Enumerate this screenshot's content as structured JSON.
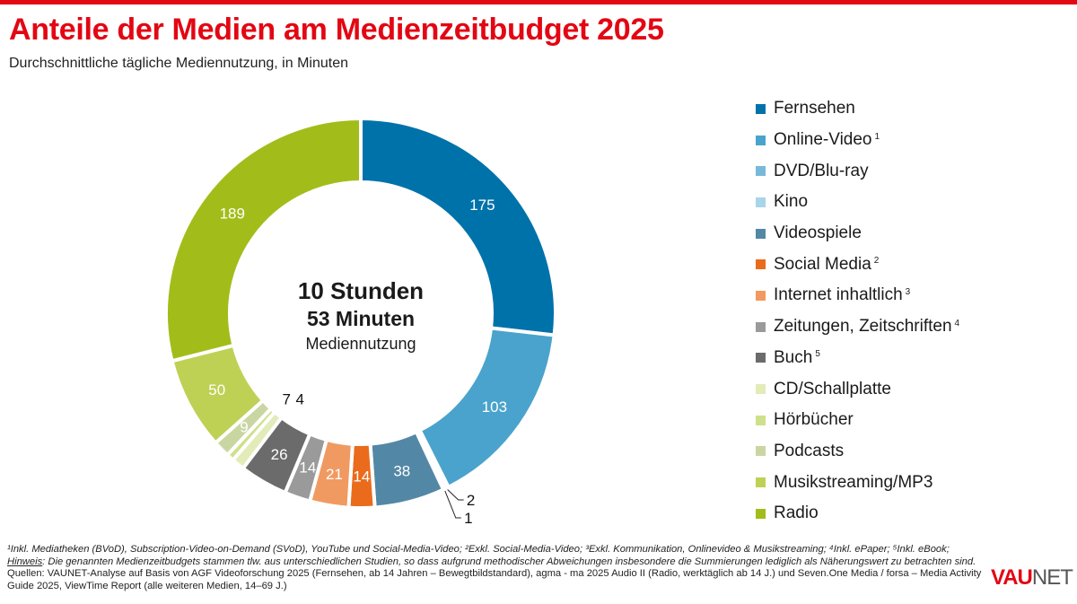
{
  "title": "Anteile der Medien am Medienzeitbudget 2025",
  "subtitle": "Durchschnittliche tägliche Mediennutzung, in Minuten",
  "center": {
    "line1": "10 Stunden",
    "line2": "53 Minuten",
    "line3": "Mediennutzung"
  },
  "chart_data": {
    "type": "pie",
    "variant": "donut",
    "title": "Anteile der Medien am Medienzeitbudget 2025",
    "unit": "Minuten",
    "legend_position": "right",
    "categories": [
      "Fernsehen",
      "Online-Video",
      "DVD/Blu-ray",
      "Kino",
      "Videospiele",
      "Social Media",
      "Internet inhaltlich",
      "Zeitungen, Zeitschriften",
      "Buch",
      "CD/Schallplatte",
      "Hörbücher",
      "Podcasts",
      "Musikstreaming/MP3",
      "Radio"
    ],
    "footnote_marks": [
      "",
      "1",
      "",
      "",
      "",
      "2",
      "3",
      "4",
      "5",
      "",
      "",
      "",
      "",
      ""
    ],
    "values": [
      175,
      103,
      2,
      1,
      38,
      14,
      21,
      14,
      26,
      7,
      4,
      9,
      50,
      189
    ],
    "colors": [
      "#0072aa",
      "#4aa3cc",
      "#78b9d9",
      "#a9d5e8",
      "#5387a6",
      "#ea6b1c",
      "#f09a62",
      "#9a9a9a",
      "#6b6b6b",
      "#e3ebb9",
      "#cfe08a",
      "#c9d6a2",
      "#bfd155",
      "#a2bd1a"
    ]
  },
  "footer": {
    "notes": "¹Inkl. Mediatheken (BVoD), Subscription-Video-on-Demand (SVoD), YouTube und Social-Media-Video; ²Exkl. Social-Media-Video; ³Exkl. Kommunikation, Onlinevideo & Musikstreaming; ⁴Inkl. ePaper; ⁵Inkl. eBook;",
    "hinweis_label": "Hinweis",
    "hinweis": ": Die genannten Medienzeitbudgets stammen tlw. aus unterschiedlichen Studien, so dass aufgrund methodischer Abweichungen insbesondere die Summierungen lediglich als Näherungswert zu betrachten sind.",
    "quellen": "Quellen: VAUNET-Analyse auf Basis von AGF Videoforschung 2025 (Fernsehen, ab 14 Jahren – Bewegtbildstandard), agma - ma 2025 Audio II (Radio, werktäglich ab 14 J.) und Seven.One Media / forsa – Media Activity Guide 2025, ViewTime Report (alle weiteren Medien, 14–69 J.)"
  },
  "logo": {
    "part1": "VAU",
    "part2": "NET"
  }
}
